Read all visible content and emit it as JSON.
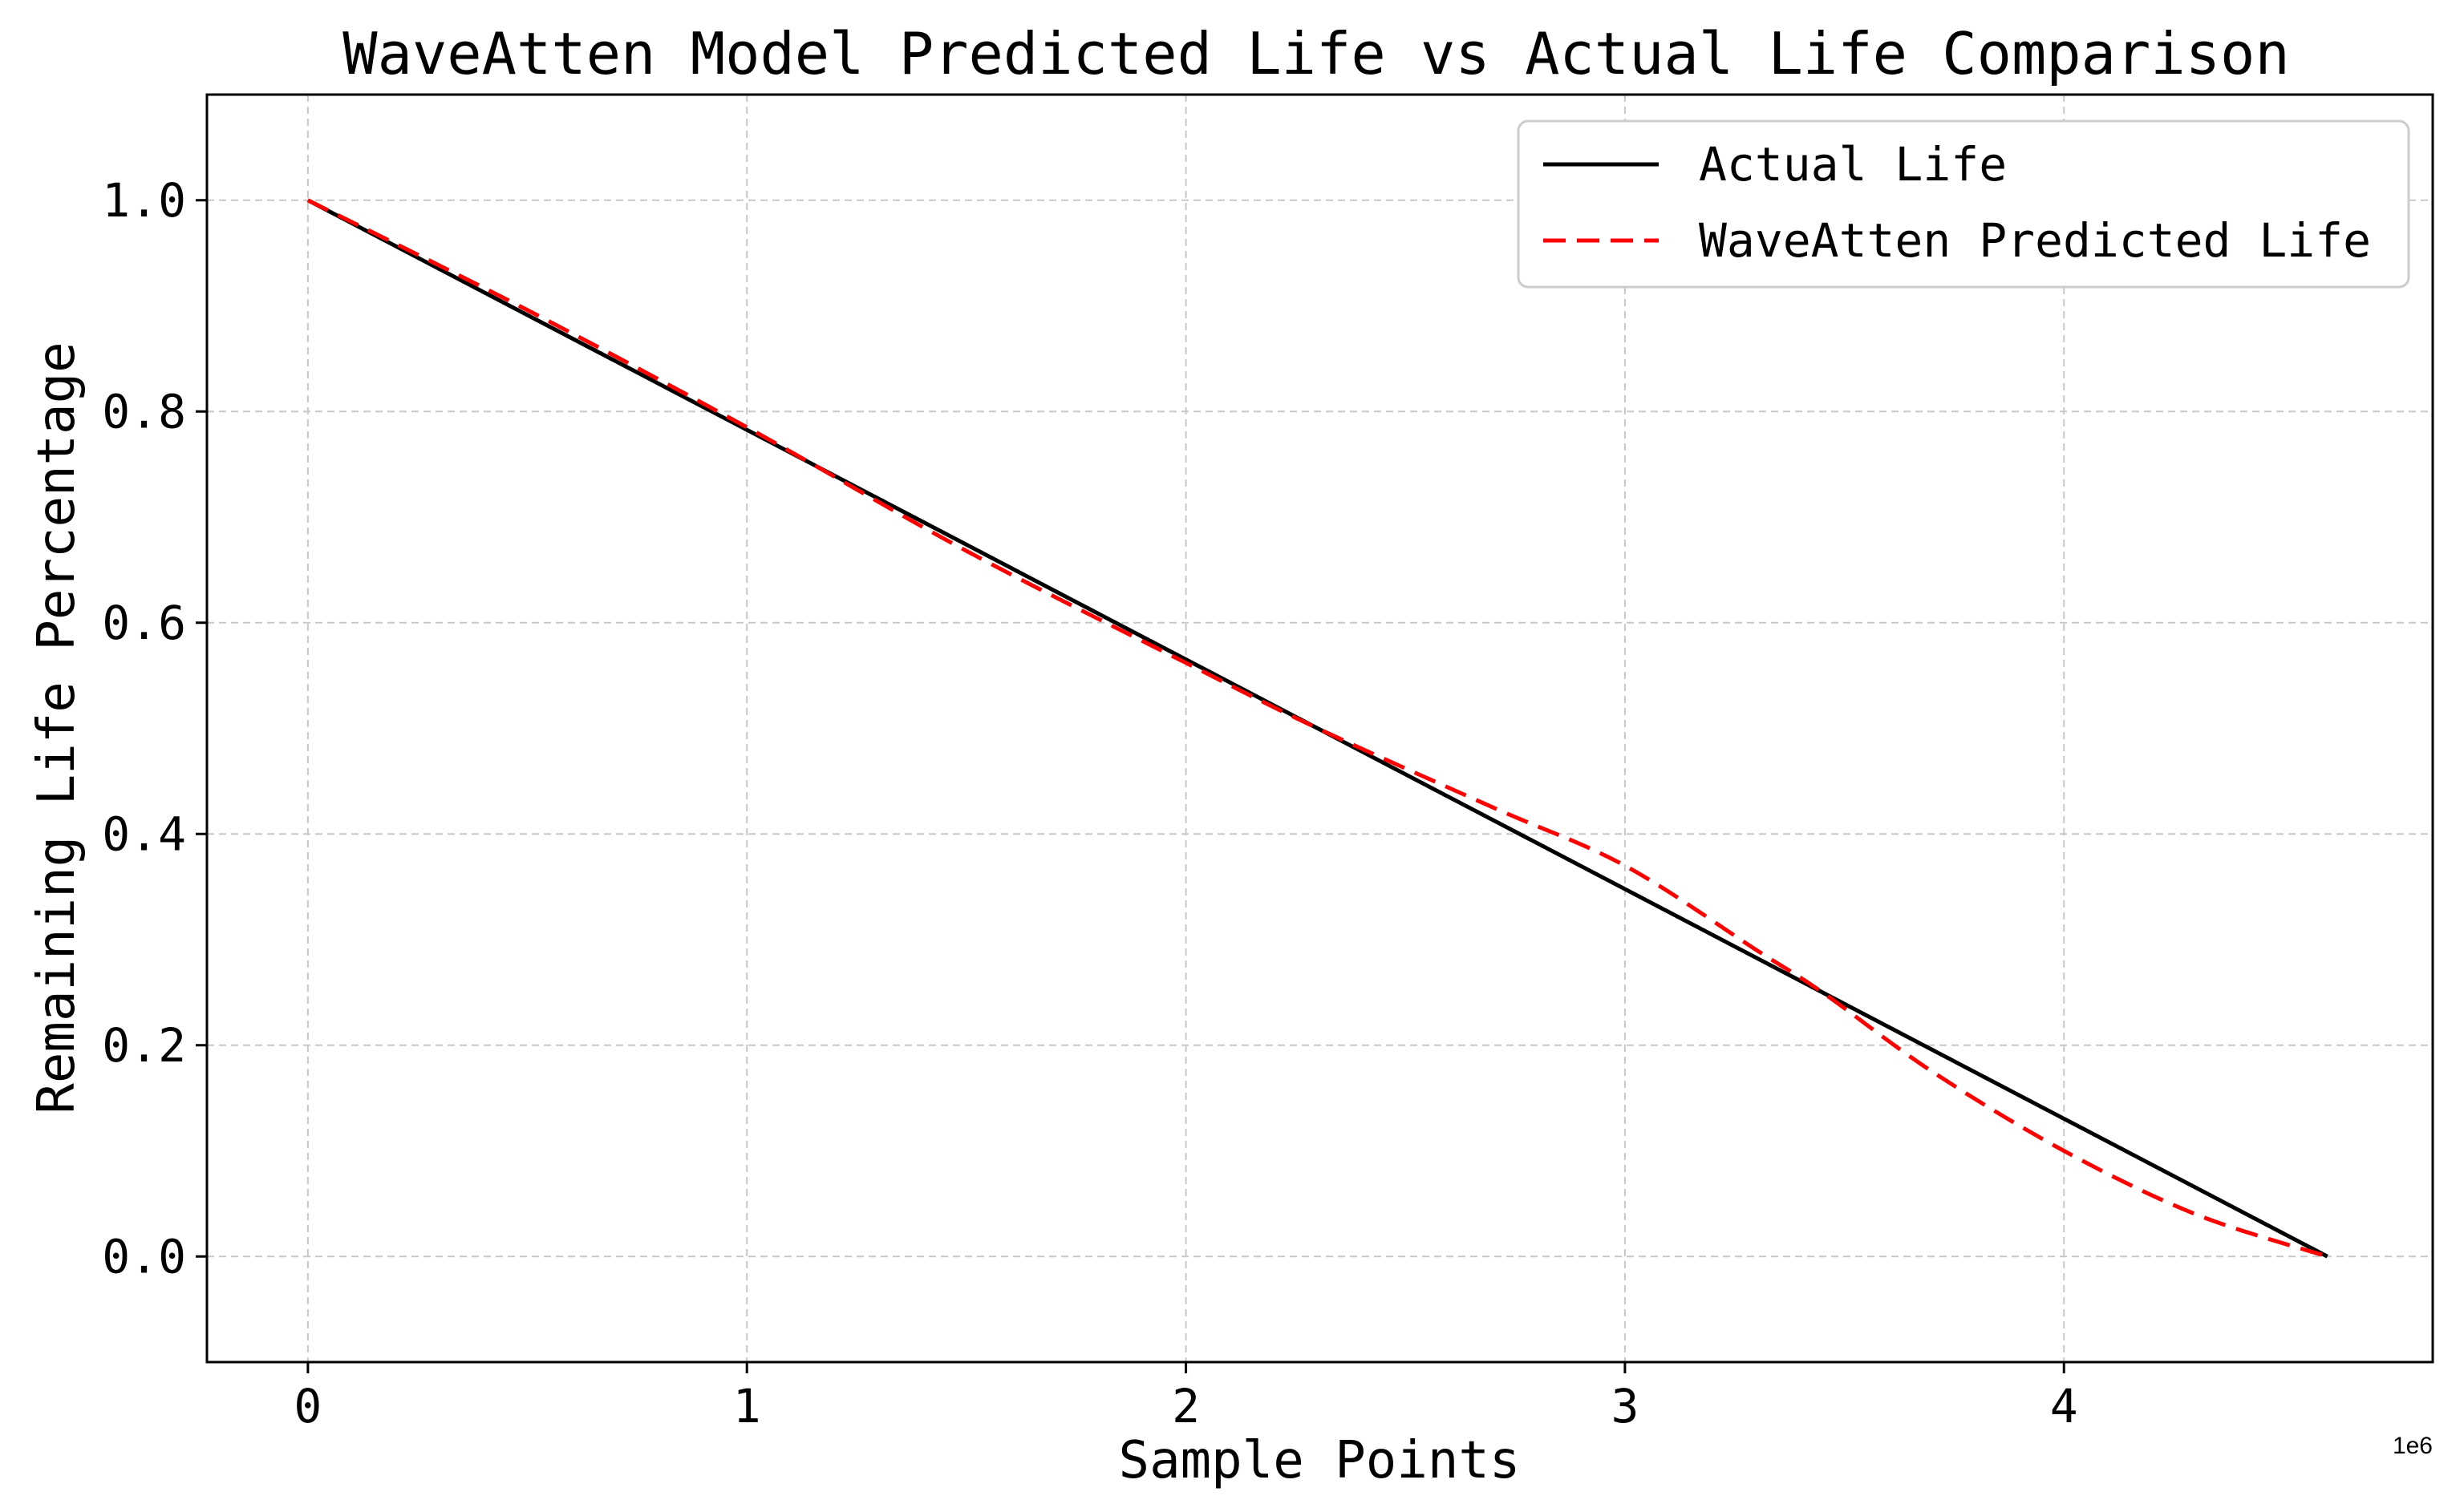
{
  "chart_data": {
    "type": "line",
    "title": "WaveAtten Model Predicted Life vs Actual Life Comparison",
    "xlabel": "Sample Points",
    "ylabel": "Remaining Life Percentage",
    "x_offset_label": "1e6",
    "xlim": [
      -0.23,
      4.84
    ],
    "ylim": [
      -0.1,
      1.1
    ],
    "x_ticks": [
      0,
      1,
      2,
      3,
      4
    ],
    "x_tick_labels": [
      "0",
      "1",
      "2",
      "3",
      "4"
    ],
    "y_ticks": [
      0.0,
      0.2,
      0.4,
      0.6,
      0.8,
      1.0
    ],
    "y_tick_labels": [
      "0.0",
      "0.2",
      "0.4",
      "0.6",
      "0.8",
      "1.0"
    ],
    "grid": true,
    "legend_position": "top-right",
    "series": [
      {
        "name": "Actual Life",
        "color": "#000000",
        "style": "solid",
        "x": [
          0,
          4.6
        ],
        "y": [
          1.0,
          0.0
        ]
      },
      {
        "name": "WaveAtten Predicted Life",
        "color": "#ff0000",
        "style": "dashed",
        "x": [
          0,
          0.5,
          1.0,
          1.5,
          2.0,
          2.3,
          2.7,
          3.0,
          3.3,
          3.45,
          3.7,
          4.0,
          4.3,
          4.6
        ],
        "y": [
          1.0,
          0.896,
          0.785,
          0.668,
          0.562,
          0.5,
          0.425,
          0.37,
          0.29,
          0.25,
          0.175,
          0.1,
          0.04,
          0.0
        ]
      }
    ]
  }
}
